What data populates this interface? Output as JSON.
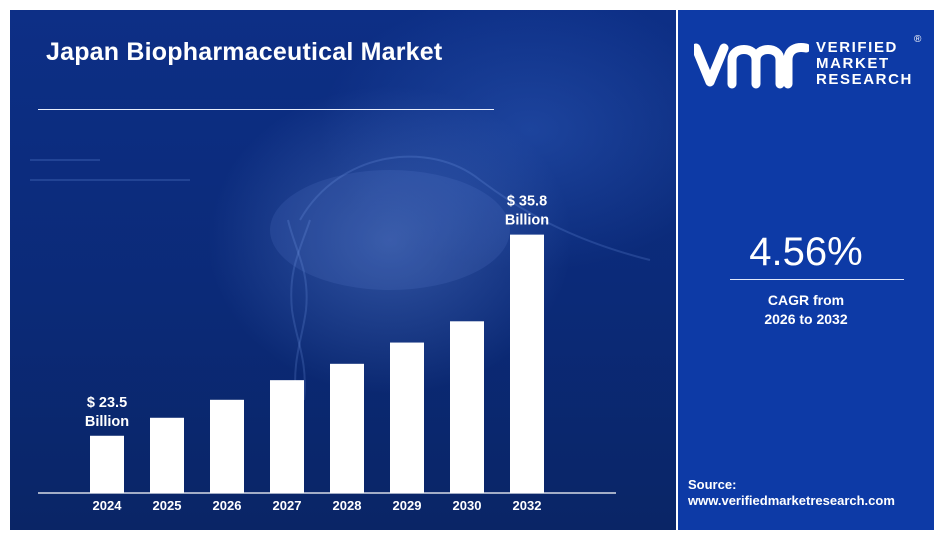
{
  "header": {
    "title": "Japan Biopharmaceutical Market"
  },
  "brand": {
    "line1": "VERIFIED",
    "line2": "MARKET",
    "line3": "RESEARCH",
    "registered": "®"
  },
  "summary": {
    "cagr_value": "4.56%",
    "cagr_label_line1": "CAGR from",
    "cagr_label_line2": "2026 to 2032"
  },
  "source": {
    "label": "Source:",
    "url": "www.verifiedmarketresearch.com"
  },
  "colors": {
    "left_background": "#0b2a78",
    "right_background": "#0d3aa6",
    "bar": "#ffffff",
    "text": "#ffffff"
  },
  "chart_data": {
    "type": "bar",
    "title": "Japan Biopharmaceutical Market",
    "categories": [
      "2024",
      "2025",
      "2026",
      "2027",
      "2028",
      "2029",
      "2030",
      "2032"
    ],
    "values": [
      23.5,
      24.6,
      25.7,
      26.9,
      27.9,
      29.2,
      30.5,
      35.8
    ],
    "units": "USD Billion",
    "ylim": [
      20,
      37
    ],
    "data_labels": [
      {
        "index": 0,
        "line1": "$ 23.5",
        "line2": "Billion"
      },
      {
        "index": 7,
        "line1": "$ 35.8",
        "line2": "Billion"
      }
    ],
    "xlabel": "",
    "ylabel": "",
    "grid": false,
    "legend": "none"
  }
}
